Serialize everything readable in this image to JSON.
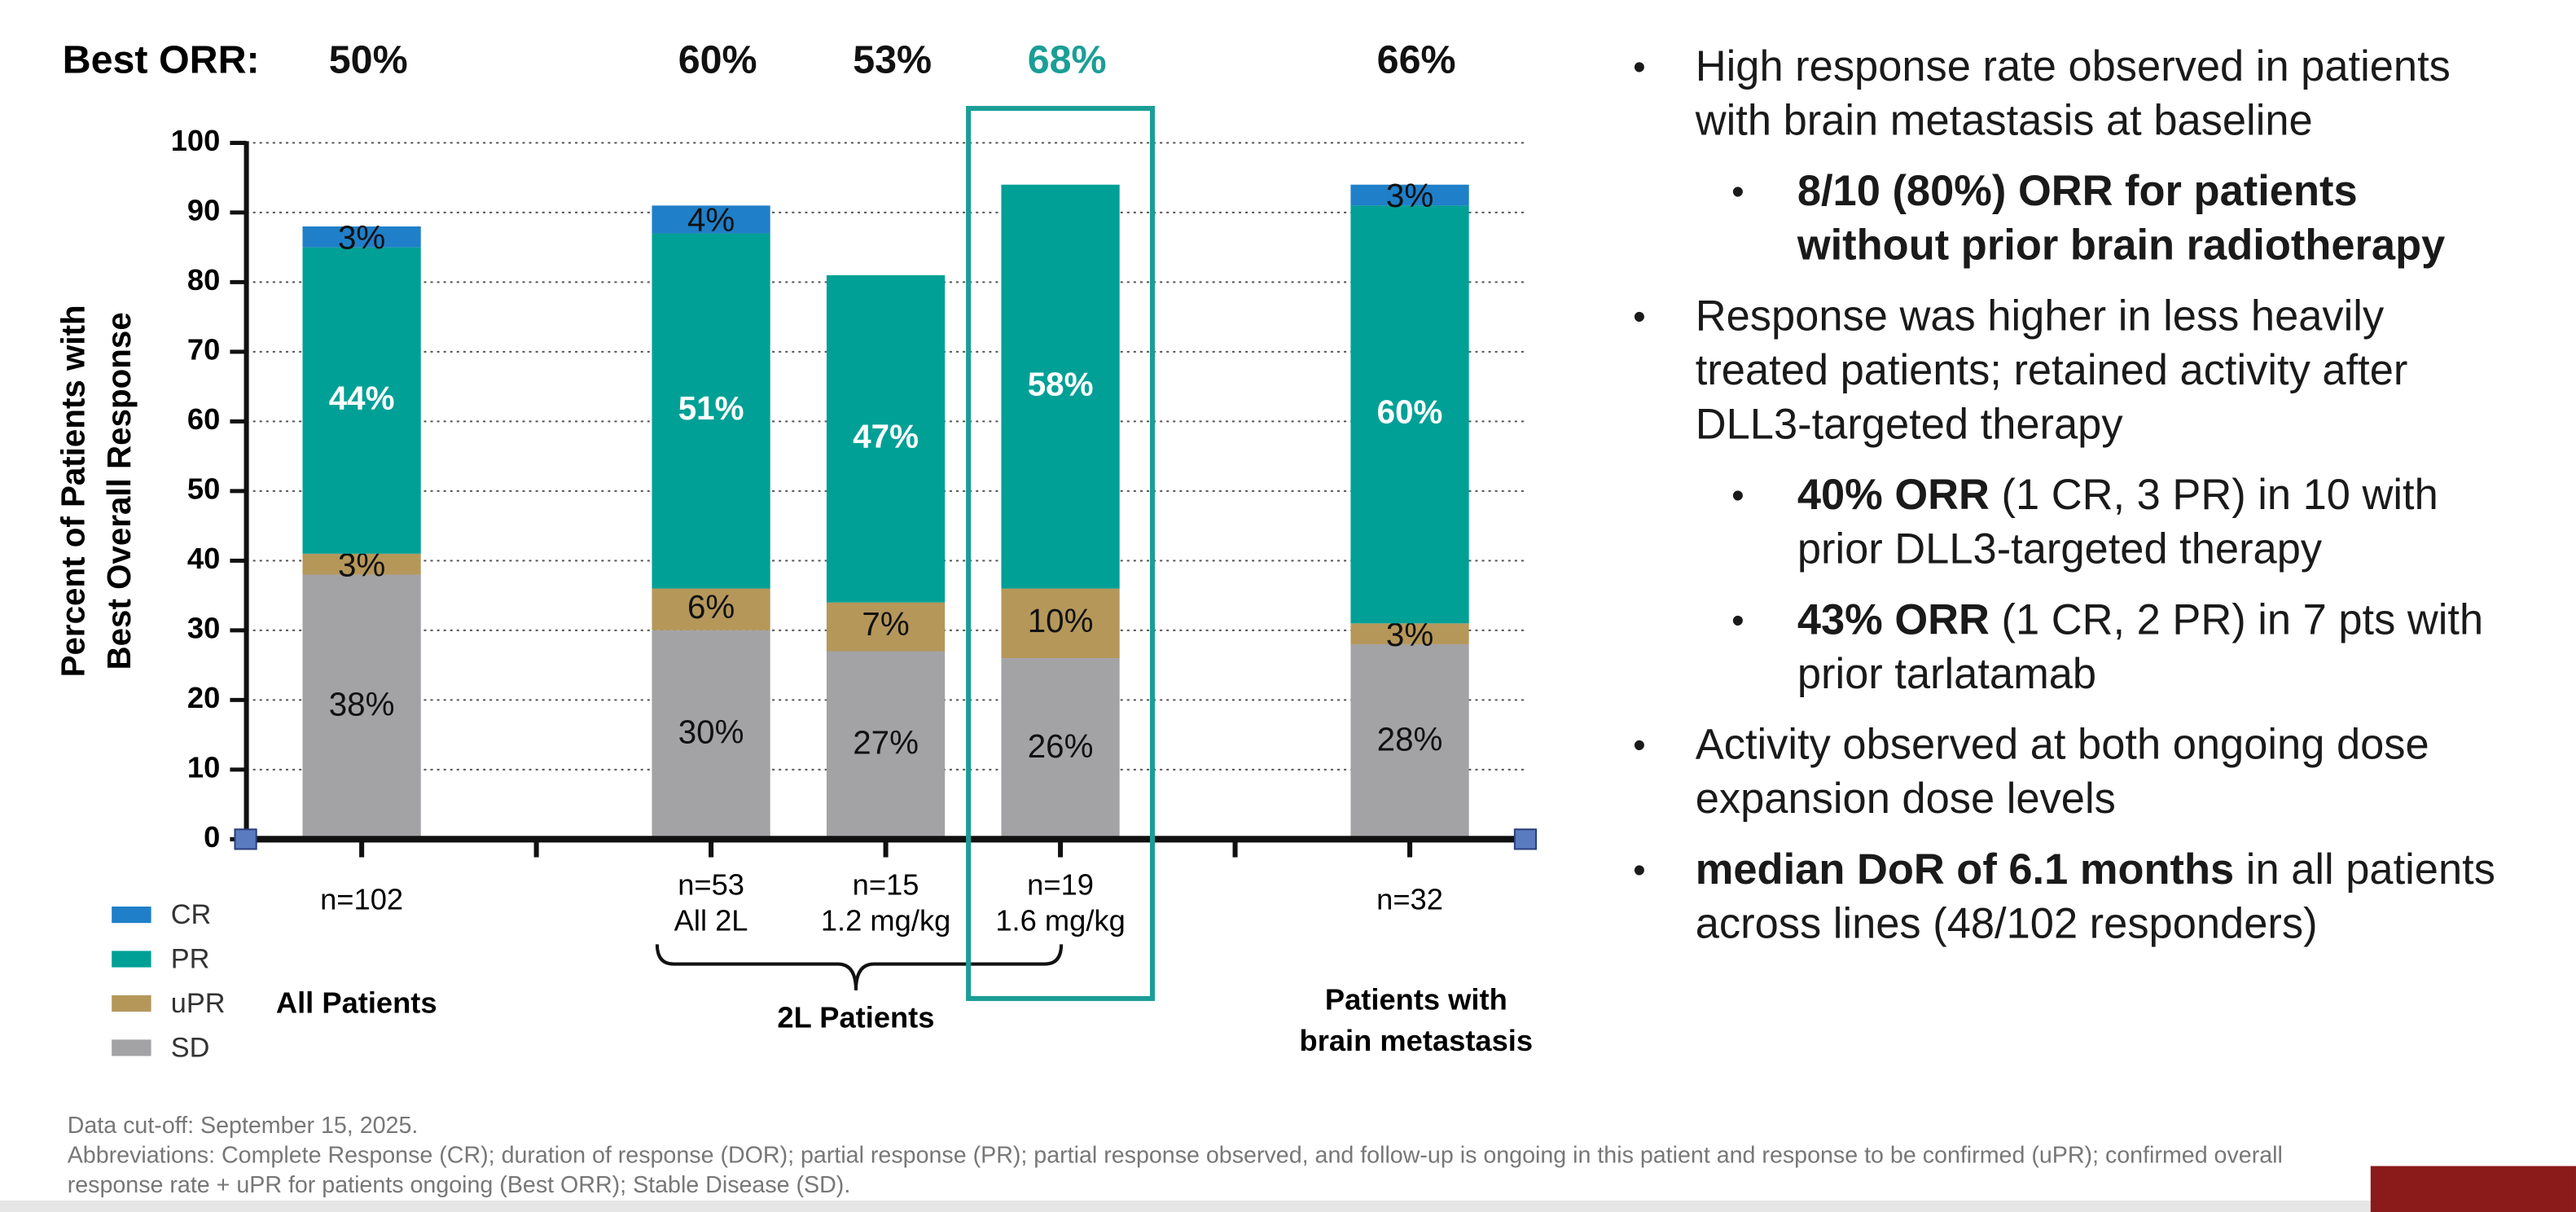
{
  "chart_data": {
    "type": "stacked_bar",
    "best_orr_title": "Best ORR:",
    "best_orr": [
      "50%",
      null,
      "60%",
      "53%",
      "68%",
      null,
      "66%"
    ],
    "y_label": [
      "Percent of  Patients with",
      "Best Overall Response"
    ],
    "categories": [
      [
        "n=102"
      ],
      null,
      [
        "n=53",
        "All 2L"
      ],
      [
        "n=15",
        "1.2 mg/kg"
      ],
      [
        "n=19",
        "1.6 mg/kg"
      ],
      null,
      [
        "n=32"
      ]
    ],
    "series": [
      {
        "name": "SD",
        "color": "#a3a3a6",
        "label_color": "#111111",
        "values": [
          38,
          null,
          30,
          27,
          26,
          null,
          28
        ],
        "value_labels": [
          "38%",
          null,
          "30%",
          "27%",
          "26%",
          null,
          "28%"
        ]
      },
      {
        "name": "uPR",
        "color": "#b5975a",
        "label_color": "#111111",
        "values": [
          3,
          null,
          6,
          7,
          10,
          null,
          3
        ],
        "value_labels": [
          "3%",
          null,
          "6%",
          "7%",
          "10%",
          null,
          "3%"
        ]
      },
      {
        "name": "PR",
        "color": "#00a096",
        "label_color": "#ffffff",
        "values": [
          44,
          null,
          51,
          47,
          58,
          null,
          60
        ],
        "value_labels": [
          "44%",
          null,
          "51%",
          "47%",
          "58%",
          null,
          "60%"
        ]
      },
      {
        "name": "CR",
        "color": "#1f7fc8",
        "label_color": "#111111",
        "values": [
          3,
          null,
          4,
          null,
          null,
          null,
          3
        ],
        "value_labels": [
          "3%",
          null,
          "4%",
          null,
          null,
          null,
          "3%"
        ]
      }
    ],
    "ylim": [
      0,
      100
    ],
    "yticks": [
      0,
      10,
      20,
      30,
      40,
      50,
      60,
      70,
      80,
      90,
      100
    ],
    "grid": true,
    "highlight": {
      "category_index": 4,
      "color": "#1a9e96"
    },
    "groups": {
      "all": "All Patients",
      "second_line": "2L Patients",
      "brain": [
        "Patients with",
        "brain metastasis"
      ]
    }
  },
  "bullets": [
    {
      "level": 1,
      "runs": [
        {
          "text": "High response rate observed in patients with brain metastasis at baseline",
          "bold": false
        }
      ]
    },
    {
      "level": 2,
      "runs": [
        {
          "text": "8/10 (80%) ORR for patients without prior brain radiotherapy",
          "bold": true
        }
      ]
    },
    {
      "level": 1,
      "runs": [
        {
          "text": "Response was higher in less heavily treated patients; retained activity after DLL3-targeted therapy",
          "bold": false
        }
      ]
    },
    {
      "level": 2,
      "runs": [
        {
          "text": "40% ORR",
          "bold": true
        },
        {
          "text": " (1 CR, 3 PR) in 10 with prior DLL3-targeted therapy",
          "bold": false
        }
      ]
    },
    {
      "level": 2,
      "runs": [
        {
          "text": "43% ORR",
          "bold": true
        },
        {
          "text": " (1 CR, 2 PR) in 7 pts with prior tarlatamab",
          "bold": false
        }
      ]
    },
    {
      "level": 1,
      "runs": [
        {
          "text": "Activity observed at both ongoing dose expansion dose levels",
          "bold": false
        }
      ]
    },
    {
      "level": 1,
      "runs": [
        {
          "text": "median DoR of 6.1 months",
          "bold": true
        },
        {
          "text": " in all patients across lines (48/102 responders)",
          "bold": false
        }
      ]
    }
  ],
  "footnotes": [
    "Data cut-off: September 15, 2025.",
    "Abbreviations: Complete Response (CR); duration of response (DOR); partial response (PR); partial response observed, and follow-up is ongoing in this patient and response to be confirmed (uPR); confirmed overall response rate + uPR for patients ongoing (Best ORR); Stable Disease (SD)."
  ]
}
